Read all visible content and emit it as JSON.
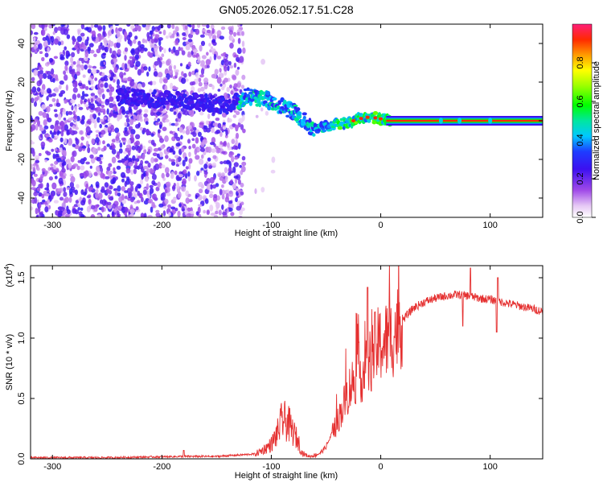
{
  "title": "GN05.2026.052.17.51.C28",
  "chart_data": [
    {
      "type": "heatmap",
      "name": "spectrogram",
      "title": "GN05.2026.052.17.51.C28",
      "xlabel": "Height of straight line (km)",
      "ylabel": "Frequency (Hz)",
      "xlim": [
        -320,
        148
      ],
      "ylim": [
        -50,
        50
      ],
      "xticks": [
        -300,
        -200,
        -100,
        0,
        100
      ],
      "yticks": [
        -40,
        -20,
        0,
        20,
        40
      ],
      "colorbar": {
        "label": "Normalized spectral amplitude",
        "range": [
          0,
          1
        ],
        "ticks": [
          0.0,
          0.2,
          0.4,
          0.6,
          0.8
        ]
      },
      "ridge": {
        "description": "frequency track versus height",
        "x": [
          -230,
          -200,
          -170,
          -140,
          -120,
          -100,
          -80,
          -70,
          -60,
          -50,
          -40,
          -30,
          -20,
          -10,
          0,
          10,
          148
        ],
        "y": [
          12,
          11,
          10,
          8,
          13,
          10,
          5,
          0,
          -5,
          -3,
          -2,
          -1,
          1,
          2,
          1,
          0,
          0
        ]
      }
    },
    {
      "type": "line",
      "name": "snr",
      "xlabel": "Height of straight line (km)",
      "ylabel": "SNR (10 * v/v)",
      "multiplier_label": "(x10",
      "multiplier_exp": "4",
      "xlim": [
        -320,
        148
      ],
      "ylim": [
        0,
        1.6
      ],
      "xticks": [
        -300,
        -200,
        -100,
        0,
        100
      ],
      "yticks": [
        0.0,
        0.5,
        1.0,
        1.5
      ],
      "series": [
        {
          "name": "SNR",
          "color": "#e53030",
          "x": [
            -320,
            -250,
            -180,
            -150,
            -115,
            -110,
            -100,
            -95,
            -90,
            -85,
            -80,
            -75,
            -72,
            -68,
            -65,
            -60,
            -55,
            -50,
            -45,
            -40,
            -35,
            -30,
            -25,
            -20,
            -15,
            -10,
            -5,
            0,
            5,
            10,
            15,
            20,
            30,
            40,
            50,
            60,
            70,
            80,
            85,
            90,
            100,
            110,
            120,
            130,
            140,
            148
          ],
          "y": [
            0.01,
            0.01,
            0.02,
            0.02,
            0.04,
            0.06,
            0.12,
            0.2,
            0.32,
            0.3,
            0.22,
            0.14,
            0.05,
            0.03,
            0.02,
            0.03,
            0.05,
            0.1,
            0.2,
            0.3,
            0.42,
            0.55,
            0.65,
            0.72,
            0.7,
            0.8,
            0.92,
            0.95,
            0.98,
            1.0,
            1.08,
            1.15,
            1.25,
            1.3,
            1.33,
            1.35,
            1.36,
            1.35,
            1.34,
            1.33,
            1.32,
            1.3,
            1.28,
            1.26,
            1.24,
            1.22
          ]
        }
      ]
    }
  ]
}
